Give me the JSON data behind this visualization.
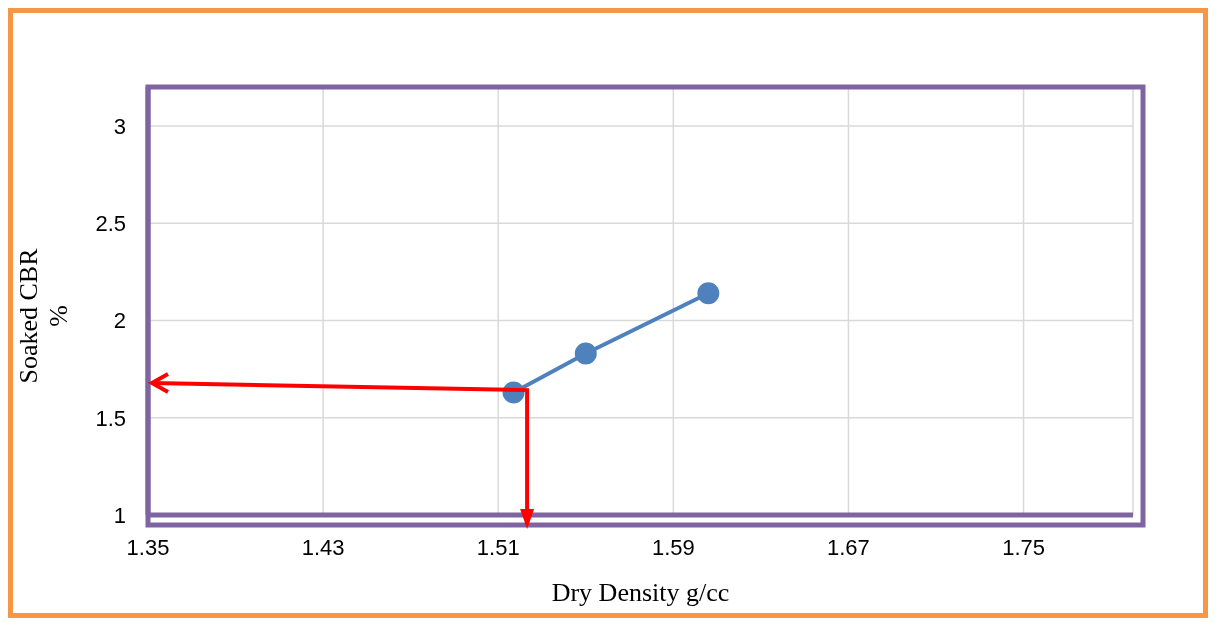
{
  "chart_data": {
    "type": "line",
    "xlabel": "Dry Density g/cc",
    "ylabel": "Soaked CBR %",
    "x": [
      1.517,
      1.55,
      1.606
    ],
    "series": [
      {
        "color": "#4f81bd",
        "values": [
          1.63,
          1.83,
          2.14
        ]
      }
    ],
    "xlim": [
      1.35,
      1.8
    ],
    "xticks": [
      1.35,
      1.43,
      1.51,
      1.59,
      1.67,
      1.75
    ],
    "ylim": [
      1,
      3.2
    ],
    "yticks": [
      1,
      1.5,
      2,
      2.5,
      3
    ],
    "grid": true,
    "marker": "circle",
    "line_style": "solid"
  }
}
